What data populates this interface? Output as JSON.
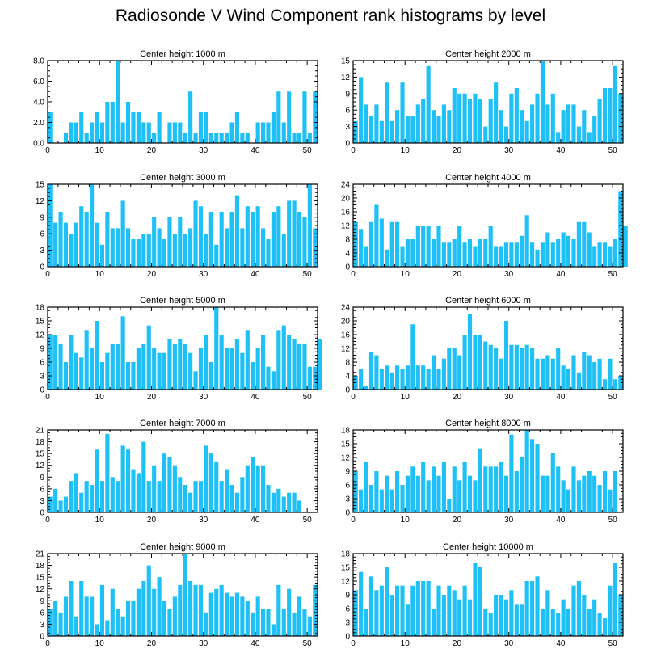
{
  "title": "Radiosonde V Wind Component rank histograms by level",
  "bar_color": "#1ec0f5",
  "chart_data": [
    {
      "type": "bar",
      "title": "Center height 1000 m",
      "xlim": [
        0,
        52
      ],
      "ylim": [
        0,
        8
      ],
      "yticks": [
        0,
        2,
        4,
        6,
        8
      ],
      "ytick_labels": [
        "0.0",
        "2.0",
        "4.0",
        "6.0",
        "8.0"
      ],
      "xticks": [
        0,
        10,
        20,
        30,
        40,
        50
      ],
      "values": [
        3,
        0,
        0,
        1,
        2,
        2,
        3,
        1,
        2,
        3,
        2,
        4,
        4,
        8,
        2,
        4,
        3,
        3,
        2,
        2,
        1,
        3,
        0,
        2,
        2,
        2,
        1,
        5,
        1,
        3,
        3,
        1,
        1,
        1,
        1,
        2,
        3,
        1,
        1,
        0,
        2,
        2,
        2,
        3,
        5,
        2,
        5,
        1,
        1,
        5,
        1,
        5
      ]
    },
    {
      "type": "bar",
      "title": "Center height 2000 m",
      "xlim": [
        0,
        52
      ],
      "ylim": [
        0,
        15
      ],
      "yticks": [
        0,
        3,
        6,
        9,
        12,
        15
      ],
      "ytick_labels": [
        "0",
        "3",
        "6",
        "9",
        "12",
        "15"
      ],
      "xticks": [
        0,
        10,
        20,
        30,
        40,
        50
      ],
      "values": [
        4,
        12,
        7,
        5,
        7,
        4,
        11,
        4,
        6,
        11,
        5,
        5,
        7,
        8,
        14,
        6,
        5,
        7,
        6,
        10,
        9,
        9,
        8,
        9,
        8,
        3,
        8,
        11,
        6,
        3,
        9,
        10,
        6,
        4,
        7,
        9,
        15,
        7,
        9,
        2,
        6,
        7,
        7,
        3,
        6,
        2,
        5,
        8,
        10,
        10,
        14,
        9
      ]
    },
    {
      "type": "bar",
      "title": "Center height 3000 m",
      "xlim": [
        0,
        52
      ],
      "ylim": [
        0,
        15
      ],
      "yticks": [
        0,
        3,
        6,
        9,
        12,
        15
      ],
      "ytick_labels": [
        "0",
        "3",
        "6",
        "9",
        "12",
        "15"
      ],
      "xticks": [
        0,
        10,
        20,
        30,
        40,
        50
      ],
      "values": [
        15,
        8,
        10,
        8,
        6,
        8,
        11,
        10,
        15,
        8,
        4,
        10,
        7,
        7,
        12,
        7,
        5,
        5,
        6,
        6,
        9,
        7,
        5,
        9,
        6,
        9,
        6,
        7,
        12,
        11,
        6,
        10,
        4,
        10,
        7,
        10,
        13,
        7,
        11,
        10,
        11,
        7,
        5,
        10,
        11,
        6,
        12,
        12,
        10,
        9,
        15,
        7
      ]
    },
    {
      "type": "bar",
      "title": "Center height 4000 m",
      "xlim": [
        0,
        52
      ],
      "ylim": [
        0,
        24
      ],
      "yticks": [
        0,
        4,
        8,
        12,
        16,
        20,
        24
      ],
      "ytick_labels": [
        "0",
        "4",
        "8",
        "12",
        "16",
        "20",
        "24"
      ],
      "xticks": [
        0,
        10,
        20,
        30,
        40,
        50
      ],
      "values": [
        13,
        11,
        6,
        13,
        18,
        14,
        5,
        13,
        13,
        6,
        8,
        8,
        12,
        12,
        12,
        8,
        12,
        7,
        7,
        8,
        12,
        7,
        8,
        6,
        8,
        8,
        12,
        6,
        6,
        7,
        7,
        7,
        9,
        15,
        7,
        5,
        7,
        10,
        7,
        8,
        10,
        9,
        8,
        13,
        13,
        10,
        6,
        7,
        7,
        6,
        8,
        22,
        12
      ]
    },
    {
      "type": "bar",
      "title": "Center height 5000 m",
      "xlim": [
        0,
        52
      ],
      "ylim": [
        0,
        18
      ],
      "yticks": [
        0,
        3,
        6,
        9,
        12,
        15,
        18
      ],
      "ytick_labels": [
        "0",
        "3",
        "6",
        "9",
        "12",
        "15",
        "18"
      ],
      "xticks": [
        0,
        10,
        20,
        30,
        40,
        50
      ],
      "values": [
        12,
        12,
        10,
        6,
        12,
        8,
        7,
        13,
        9,
        15,
        6,
        8,
        10,
        10,
        16,
        6,
        6,
        9,
        10,
        14,
        9,
        8,
        8,
        11,
        10,
        11,
        10,
        8,
        4,
        9,
        12,
        6,
        18,
        12,
        9,
        9,
        11,
        8,
        13,
        6,
        9,
        12,
        5,
        4,
        13,
        14,
        12,
        11,
        10,
        10,
        5,
        5,
        11
      ]
    },
    {
      "type": "bar",
      "title": "Center height 6000 m",
      "xlim": [
        0,
        52
      ],
      "ylim": [
        0,
        24
      ],
      "yticks": [
        0,
        4,
        8,
        12,
        16,
        20,
        24
      ],
      "ytick_labels": [
        "0",
        "4",
        "8",
        "12",
        "16",
        "20",
        "24"
      ],
      "xticks": [
        0,
        10,
        20,
        30,
        40,
        50
      ],
      "values": [
        4,
        6,
        1,
        11,
        10,
        6,
        7,
        5,
        7,
        6,
        7,
        19,
        7,
        7,
        6,
        10,
        6,
        9,
        12,
        12,
        10,
        16,
        22,
        16,
        16,
        14,
        13,
        12,
        9,
        20,
        13,
        13,
        12,
        13,
        12,
        9,
        9,
        10,
        9,
        12,
        7,
        6,
        10,
        5,
        11,
        10,
        8,
        9,
        3,
        9,
        3,
        4
      ]
    },
    {
      "type": "bar",
      "title": "Center height 7000 m",
      "xlim": [
        0,
        52
      ],
      "ylim": [
        0,
        21
      ],
      "yticks": [
        0,
        3,
        6,
        9,
        12,
        15,
        18,
        21
      ],
      "ytick_labels": [
        "0",
        "3",
        "6",
        "9",
        "12",
        "15",
        "18",
        "21"
      ],
      "xticks": [
        0,
        10,
        20,
        30,
        40,
        50
      ],
      "values": [
        4,
        6,
        3,
        4,
        8,
        10,
        5,
        8,
        7,
        16,
        8,
        20,
        9,
        8,
        17,
        16,
        11,
        10,
        18,
        8,
        12,
        8,
        15,
        14,
        12,
        9,
        7,
        5,
        8,
        8,
        17,
        15,
        13,
        8,
        11,
        7,
        5,
        9,
        12,
        14,
        12,
        12,
        7,
        5,
        6,
        4,
        5,
        5,
        3
      ]
    },
    {
      "type": "bar",
      "title": "Center height 8000 m",
      "xlim": [
        0,
        52
      ],
      "ylim": [
        0,
        18
      ],
      "yticks": [
        0,
        3,
        6,
        9,
        12,
        15,
        18
      ],
      "ytick_labels": [
        "0",
        "3",
        "6",
        "9",
        "12",
        "15",
        "18"
      ],
      "xticks": [
        0,
        10,
        20,
        30,
        40,
        50
      ],
      "values": [
        9,
        5,
        11,
        6,
        9,
        5,
        8,
        5,
        9,
        6,
        8,
        10,
        8,
        11,
        7,
        10,
        8,
        11,
        3,
        10,
        7,
        11,
        8,
        7,
        14,
        10,
        10,
        10,
        11,
        8,
        17,
        9,
        12,
        18,
        16,
        15,
        8,
        8,
        13,
        10,
        7,
        5,
        10,
        7,
        8,
        9,
        8,
        6,
        9,
        5,
        9
      ]
    },
    {
      "type": "bar",
      "title": "Center height 9000 m",
      "xlim": [
        0,
        52
      ],
      "ylim": [
        0,
        21
      ],
      "yticks": [
        0,
        3,
        6,
        9,
        12,
        15,
        18,
        21
      ],
      "ytick_labels": [
        "0",
        "3",
        "6",
        "9",
        "12",
        "15",
        "18",
        "21"
      ],
      "xticks": [
        0,
        10,
        20,
        30,
        40,
        50
      ],
      "values": [
        7,
        9,
        6,
        10,
        14,
        5,
        14,
        10,
        10,
        3,
        13,
        4,
        12,
        7,
        5,
        9,
        9,
        12,
        14,
        18,
        12,
        15,
        9,
        7,
        10,
        13,
        21,
        14,
        13,
        13,
        6,
        11,
        12,
        13,
        11,
        10,
        11,
        10,
        9,
        6,
        10,
        7,
        7,
        3,
        13,
        7,
        12,
        6,
        10,
        7,
        5,
        13
      ]
    },
    {
      "type": "bar",
      "title": "Center height 10000 m",
      "xlim": [
        0,
        52
      ],
      "ylim": [
        0,
        18
      ],
      "yticks": [
        0,
        3,
        6,
        9,
        12,
        15,
        18
      ],
      "ytick_labels": [
        "0",
        "3",
        "6",
        "9",
        "12",
        "15",
        "18"
      ],
      "xticks": [
        0,
        10,
        20,
        30,
        40,
        50
      ],
      "values": [
        10,
        14,
        6,
        13,
        10,
        11,
        15,
        9,
        11,
        11,
        7,
        11,
        12,
        12,
        12,
        6,
        11,
        9,
        11,
        10,
        8,
        11,
        8,
        16,
        15,
        6,
        5,
        9,
        9,
        8,
        10,
        7,
        7,
        12,
        12,
        13,
        6,
        10,
        6,
        5,
        8,
        6,
        11,
        12,
        9,
        6,
        8,
        5,
        4,
        11,
        16,
        9
      ]
    }
  ]
}
